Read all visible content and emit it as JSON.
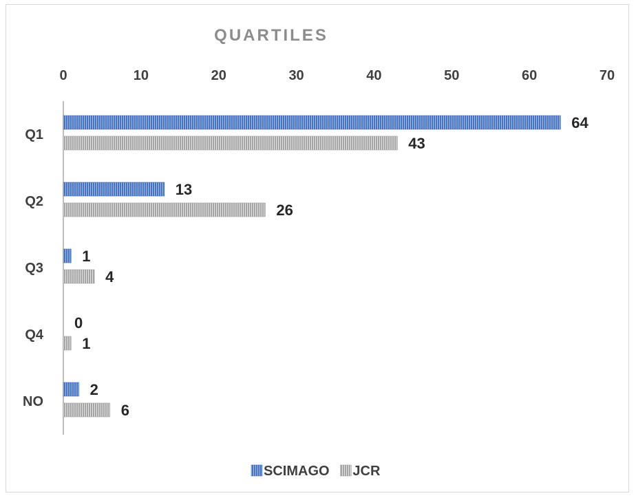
{
  "chart_data": {
    "type": "bar",
    "orientation": "horizontal",
    "title": "QUARTILES",
    "categories": [
      "Q1",
      "Q2",
      "Q3",
      "Q4",
      "NO"
    ],
    "series": [
      {
        "name": "SCIMAGO",
        "values": [
          64,
          13,
          1,
          0,
          2
        ],
        "color": "#4472c4"
      },
      {
        "name": "JCR",
        "values": [
          43,
          26,
          4,
          1,
          6
        ],
        "color": "#a5a5a5"
      }
    ],
    "xlim": [
      0,
      70
    ],
    "x_ticks": [
      "0",
      "10",
      "20",
      "30",
      "40",
      "50",
      "60",
      "70"
    ],
    "x_axis_position": "top",
    "grid": false,
    "legend_position": "bottom",
    "data_labels": true
  }
}
